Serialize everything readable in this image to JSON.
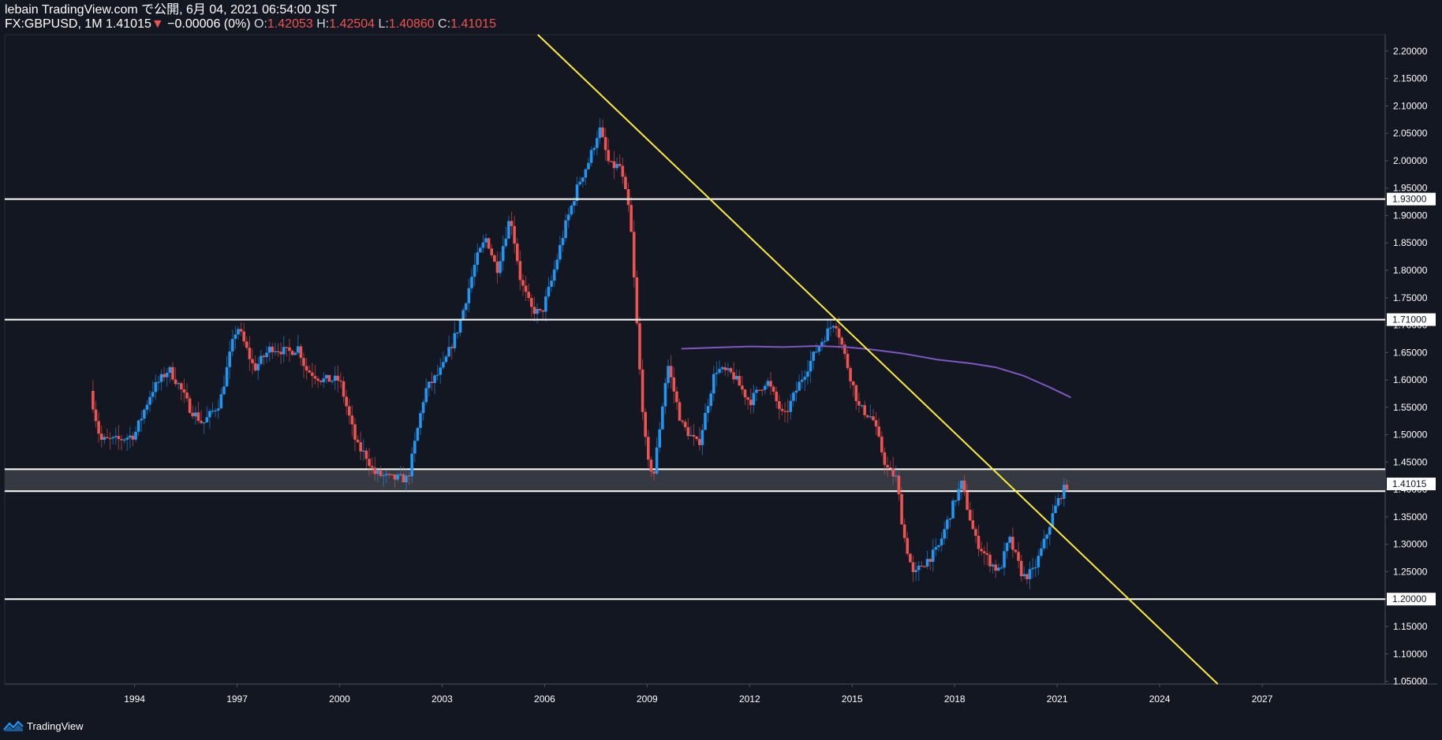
{
  "header": {
    "published": "lebain TradingView.com で公開, 6月 04, 2021 06:54:00 JST",
    "symbol": "FX:GBPUSD, 1M",
    "last": "1.41015",
    "change_arrow": "▼",
    "change": "−0.00006 (0%)",
    "o_label": "O:",
    "o_value": "1.42053",
    "h_label": "H:",
    "h_value": "1.42504",
    "l_label": "L:",
    "l_value": "1.40860",
    "c_label": "C:",
    "c_value": "1.41015"
  },
  "footer": {
    "brand": "TradingView"
  },
  "colors": {
    "background": "#131722",
    "up": "#2196f3",
    "down": "#ef5350",
    "trendline": "#ffeb3b",
    "ma": "#7e57c2",
    "level": "#ffffff",
    "zone": "#3a3d46"
  },
  "chart_data": {
    "type": "candlestick",
    "title": "FX:GBPUSD, 1M",
    "timeframe": "1M",
    "ylim": [
      1.045,
      2.23
    ],
    "xlim": [
      1990.2,
      2030.6
    ],
    "y_ticks": [
      "2.20000",
      "2.15000",
      "2.10000",
      "2.05000",
      "2.00000",
      "1.95000",
      "1.90000",
      "1.85000",
      "1.80000",
      "1.75000",
      "1.70000",
      "1.65000",
      "1.60000",
      "1.55000",
      "1.50000",
      "1.45000",
      "1.40000",
      "1.35000",
      "1.30000",
      "1.25000",
      "1.20000",
      "1.15000",
      "1.10000",
      "1.05000"
    ],
    "x_ticks": [
      "1994",
      "1997",
      "2000",
      "2003",
      "2006",
      "2009",
      "2012",
      "2015",
      "2018",
      "2021",
      "2024",
      "2027"
    ],
    "horizontal_levels": [
      {
        "value": 1.93,
        "label": "1.93000"
      },
      {
        "value": 1.71,
        "label": "1.71000"
      },
      {
        "value": 1.2,
        "label": "1.20000"
      }
    ],
    "zone": {
      "top": 1.437,
      "bottom": 1.397
    },
    "last_price": {
      "value": 1.41015,
      "label": "1.41015"
    },
    "trendline": {
      "x1": 2005.8,
      "y1": 2.23,
      "x2": 2025.7,
      "y2": 1.045
    },
    "moving_average": {
      "x": [
        2010.0,
        2011.0,
        2012.0,
        2013.0,
        2014.0,
        2014.8,
        2015.5,
        2016.5,
        2017.5,
        2018.5,
        2019.2,
        2020.0,
        2020.8,
        2021.4
      ],
      "y": [
        1.657,
        1.659,
        1.661,
        1.66,
        1.662,
        1.66,
        1.656,
        1.648,
        1.637,
        1.63,
        1.623,
        1.608,
        1.586,
        1.568
      ]
    },
    "price_path": {
      "t": [
        1992.7,
        1993.0,
        1993.5,
        1994.0,
        1994.5,
        1995.0,
        1995.3,
        1995.6,
        1996.0,
        1996.5,
        1996.8,
        1997.0,
        1997.5,
        1998.0,
        1998.5,
        1998.8,
        1999.0,
        1999.5,
        2000.0,
        2000.5,
        2000.8,
        2001.0,
        2001.5,
        2002.0,
        2002.5,
        2003.0,
        2003.5,
        2004.0,
        2004.3,
        2004.6,
        2005.0,
        2005.3,
        2005.6,
        2005.9,
        2006.2,
        2006.6,
        2007.0,
        2007.3,
        2007.6,
        2007.9,
        2008.2,
        2008.5,
        2008.8,
        2009.0,
        2009.2,
        2009.6,
        2010.0,
        2010.5,
        2011.0,
        2011.5,
        2012.0,
        2012.5,
        2013.0,
        2013.5,
        2014.0,
        2014.5,
        2014.8,
        2015.2,
        2015.6,
        2016.0,
        2016.3,
        2016.5,
        2016.8,
        2017.0,
        2017.5,
        2018.0,
        2018.2,
        2018.6,
        2019.0,
        2019.3,
        2019.6,
        2020.0,
        2020.3,
        2020.6,
        2020.9,
        2021.1,
        2021.3
      ],
      "close": [
        1.58,
        1.49,
        1.49,
        1.5,
        1.58,
        1.62,
        1.59,
        1.55,
        1.52,
        1.56,
        1.65,
        1.7,
        1.62,
        1.66,
        1.65,
        1.66,
        1.62,
        1.6,
        1.6,
        1.48,
        1.46,
        1.43,
        1.42,
        1.42,
        1.58,
        1.62,
        1.7,
        1.82,
        1.86,
        1.8,
        1.9,
        1.78,
        1.73,
        1.72,
        1.78,
        1.88,
        1.96,
        2.0,
        2.06,
        1.99,
        1.99,
        1.9,
        1.6,
        1.45,
        1.43,
        1.63,
        1.52,
        1.48,
        1.62,
        1.61,
        1.56,
        1.6,
        1.53,
        1.6,
        1.66,
        1.71,
        1.64,
        1.55,
        1.53,
        1.44,
        1.42,
        1.32,
        1.24,
        1.26,
        1.29,
        1.38,
        1.41,
        1.31,
        1.27,
        1.25,
        1.31,
        1.24,
        1.25,
        1.3,
        1.36,
        1.39,
        1.41
      ]
    }
  }
}
